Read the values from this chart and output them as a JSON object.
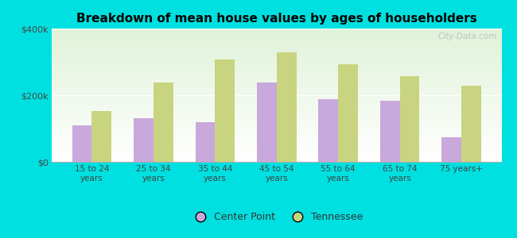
{
  "title": "Breakdown of mean house values by ages of householders",
  "categories": [
    "15 to 24\nyears",
    "25 to 34\nyears",
    "35 to 44\nyears",
    "45 to 54\nyears",
    "55 to 64\nyears",
    "65 to 74\nyears",
    "75 years+"
  ],
  "center_point": [
    110000,
    132000,
    118000,
    238000,
    188000,
    183000,
    73000
  ],
  "tennessee": [
    152000,
    238000,
    308000,
    328000,
    292000,
    258000,
    228000
  ],
  "bar_color_cp": "#c9a8dc",
  "bar_color_tn": "#c8d480",
  "background_color": "#00e0e0",
  "ylim": [
    0,
    400000
  ],
  "yticks": [
    0,
    200000,
    400000
  ],
  "ytick_labels": [
    "$0",
    "$200k",
    "$400k"
  ],
  "legend_cp": "Center Point",
  "legend_tn": "Tennessee",
  "watermark": "City-Data.com"
}
